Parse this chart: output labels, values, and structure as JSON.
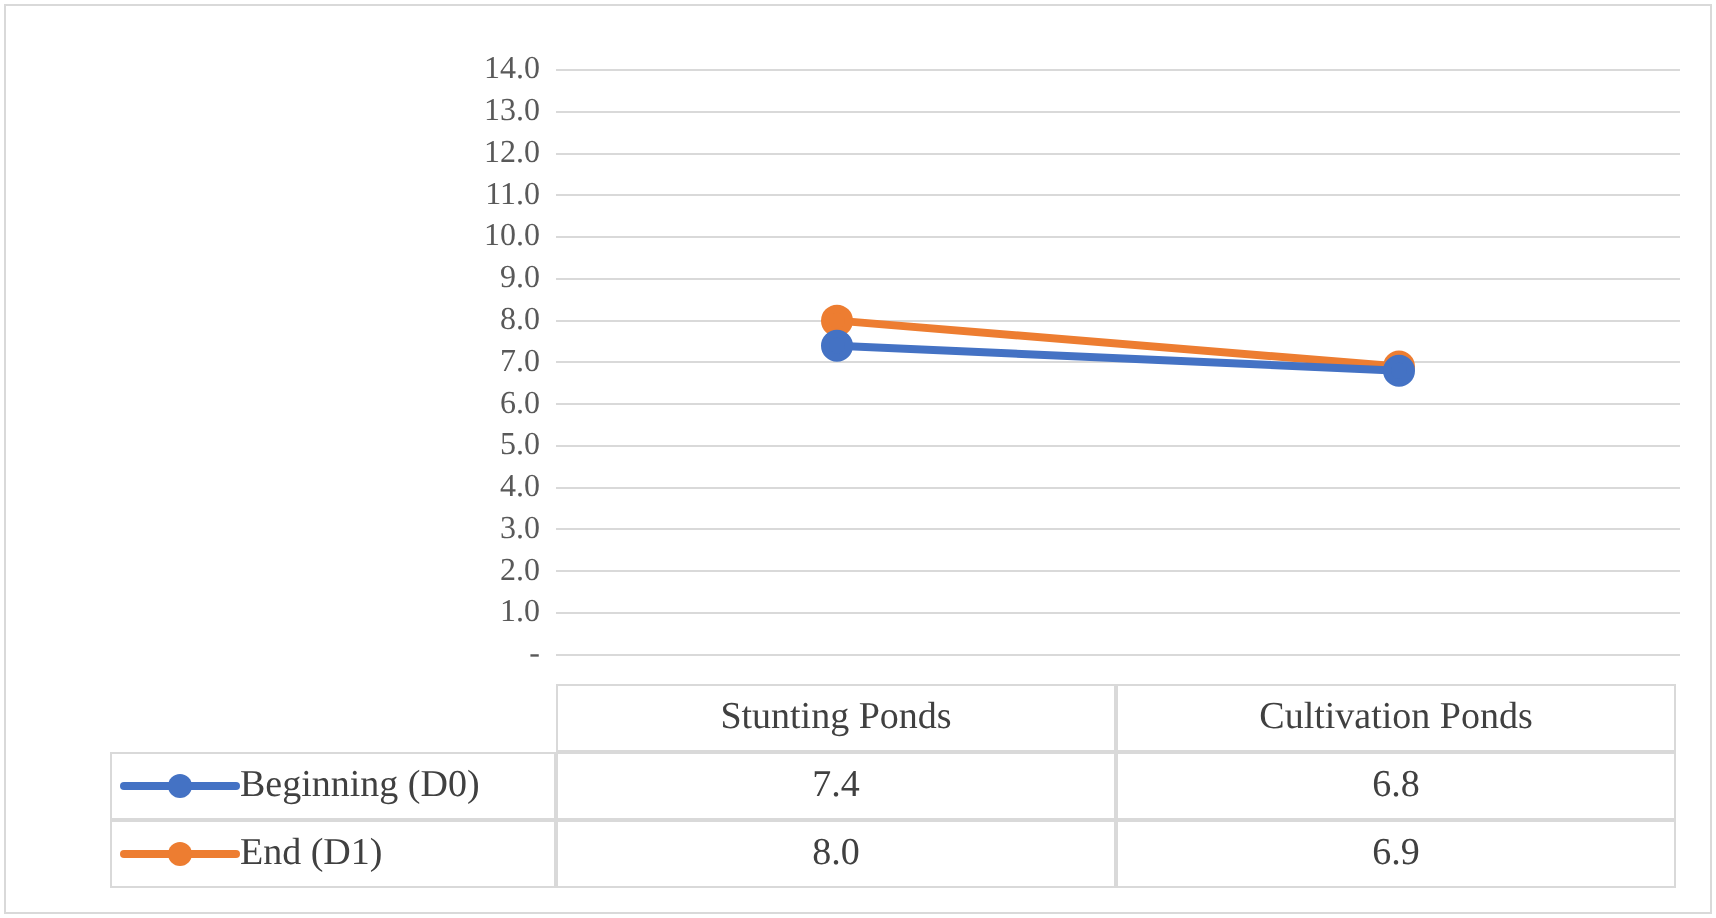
{
  "chart_data": {
    "type": "line",
    "categories": [
      "Stunting Ponds",
      "Cultivation Ponds"
    ],
    "series": [
      {
        "name": "Beginning (D0)",
        "color": "#4472c4",
        "values": [
          7.4,
          6.8
        ],
        "value_labels": [
          "7.4",
          "6.8"
        ]
      },
      {
        "name": "End (D1)",
        "color": "#ed7d31",
        "values": [
          8.0,
          6.9
        ],
        "value_labels": [
          "8.0",
          "6.9"
        ]
      }
    ],
    "ylim": [
      0,
      14
    ],
    "yticks": [
      {
        "value": 0,
        "label": "-"
      },
      {
        "value": 1,
        "label": "1.0"
      },
      {
        "value": 2,
        "label": "2.0"
      },
      {
        "value": 3,
        "label": "3.0"
      },
      {
        "value": 4,
        "label": "4.0"
      },
      {
        "value": 5,
        "label": "5.0"
      },
      {
        "value": 6,
        "label": "6.0"
      },
      {
        "value": 7,
        "label": "7.0"
      },
      {
        "value": 8,
        "label": "8.0"
      },
      {
        "value": 9,
        "label": "9.0"
      },
      {
        "value": 10,
        "label": "10.0"
      },
      {
        "value": 11,
        "label": "11.0"
      },
      {
        "value": 12,
        "label": "12.0"
      },
      {
        "value": 13,
        "label": "13.0"
      },
      {
        "value": 14,
        "label": "14.0"
      }
    ],
    "grid": "y",
    "legend": "bottom left",
    "marker": "circle",
    "line_style": "solid"
  }
}
